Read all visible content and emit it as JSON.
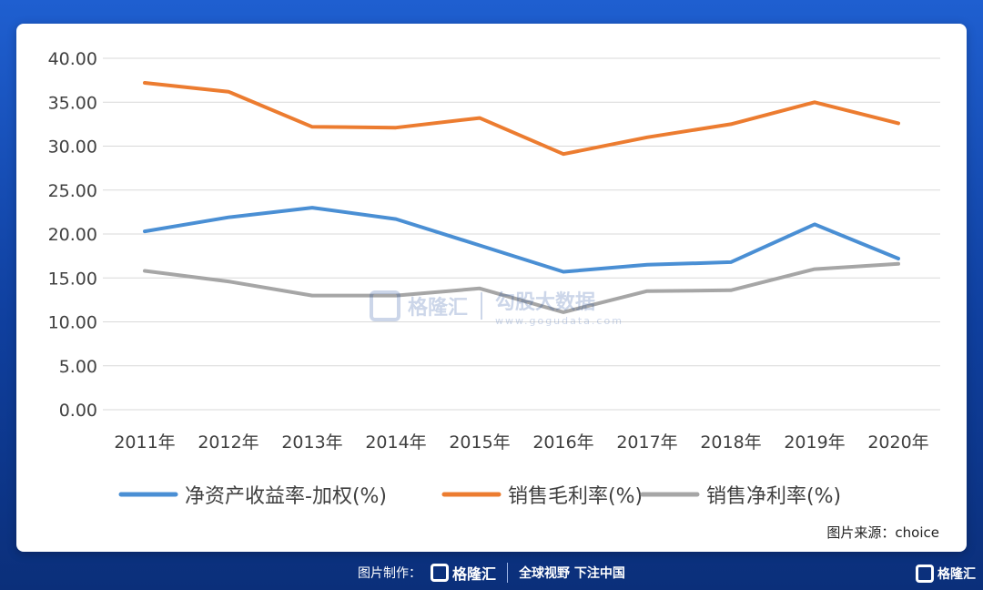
{
  "chart_data": {
    "type": "line",
    "categories": [
      "2011年",
      "2012年",
      "2013年",
      "2014年",
      "2015年",
      "2016年",
      "2017年",
      "2018年",
      "2019年",
      "2020年"
    ],
    "ylim": [
      0,
      40
    ],
    "yticks": [
      "0.00",
      "5.00",
      "10.00",
      "15.00",
      "20.00",
      "25.00",
      "30.00",
      "35.00",
      "40.00"
    ],
    "grid": true,
    "legend_position": "bottom",
    "series": [
      {
        "name": "净资产收益率-加权(%)",
        "color": "#4a8fd4",
        "values": [
          20.3,
          21.9,
          23.0,
          21.7,
          18.7,
          15.7,
          16.5,
          16.8,
          21.1,
          17.2
        ]
      },
      {
        "name": "销售毛利率(%)",
        "color": "#ec7c30",
        "values": [
          37.2,
          36.2,
          32.2,
          32.1,
          33.2,
          29.1,
          31.0,
          32.5,
          35.0,
          32.6
        ]
      },
      {
        "name": "销售净利率(%)",
        "color": "#a6a6a6",
        "values": [
          15.8,
          14.6,
          13.0,
          13.0,
          13.8,
          11.1,
          13.5,
          13.6,
          16.0,
          16.6
        ]
      }
    ]
  },
  "source": "图片来源：choice",
  "watermark": {
    "brand": "格隆汇",
    "product": "勾股大数据",
    "url": "www.gogudata.com"
  },
  "footer": {
    "made_by": "图片制作：",
    "brand": "格隆汇",
    "slogan": "全球视野 下注中国"
  },
  "corner_brand": "格隆汇"
}
